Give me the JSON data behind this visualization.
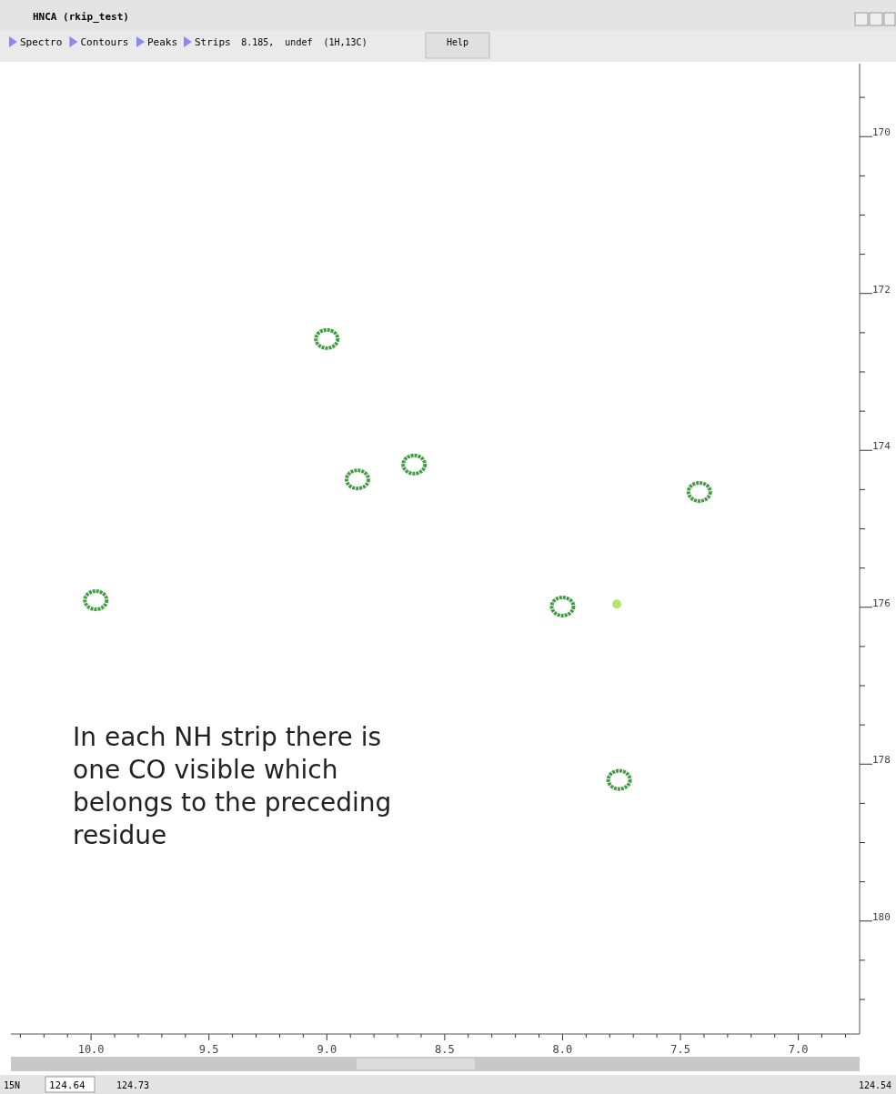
{
  "chart_data": {
    "type": "scatter",
    "title": "HNCA (rkip_test)",
    "annotations": [
      "In each NH strip there is one CO visible which belongs to the preceding residue",
      "Spectro",
      "Contours",
      "Peaks",
      "Strips",
      "8.185,  undef  (1H,13C)",
      "Help",
      "15N",
      "124.64",
      "124.73",
      "124.54"
    ],
    "series": [
      {
        "color": "#3f9e3f",
        "x": [
          9.0,
          8.87,
          8.63,
          7.42,
          9.98,
          8.0,
          7.76
        ],
        "values": [
          172.58,
          174.37,
          174.18,
          174.53,
          175.91,
          175.99,
          178.2
        ]
      },
      {
        "color": "#b4e46a",
        "x": [
          7.77
        ],
        "values": [
          175.96
        ]
      }
    ],
    "xlim": [
      10.34,
      6.74
    ],
    "ylim": [
      181.44,
      169.07
    ],
    "xticks": [
      {
        "value": 10.3,
        "label": null
      },
      {
        "value": 10.2,
        "label": null
      },
      {
        "value": 10.1,
        "label": null
      },
      {
        "value": 10,
        "label": "10.0"
      },
      {
        "value": 9.9,
        "label": null
      },
      {
        "value": 9.8,
        "label": null
      },
      {
        "value": 9.7,
        "label": null
      },
      {
        "value": 9.6,
        "label": null
      },
      {
        "value": 9.5,
        "label": "9.5"
      },
      {
        "value": 9.4,
        "label": null
      },
      {
        "value": 9.3,
        "label": null
      },
      {
        "value": 9.2,
        "label": null
      },
      {
        "value": 9.1,
        "label": null
      },
      {
        "value": 9,
        "label": "9.0"
      },
      {
        "value": 8.9,
        "label": null
      },
      {
        "value": 8.8,
        "label": null
      },
      {
        "value": 8.7,
        "label": null
      },
      {
        "value": 8.6,
        "label": null
      },
      {
        "value": 8.5,
        "label": "8.5"
      },
      {
        "value": 8.4,
        "label": null
      },
      {
        "value": 8.3,
        "label": null
      },
      {
        "value": 8.2,
        "label": null
      },
      {
        "value": 8.1,
        "label": null
      },
      {
        "value": 8,
        "label": "8.0"
      },
      {
        "value": 7.9,
        "label": null
      },
      {
        "value": 7.8,
        "label": null
      },
      {
        "value": 7.7,
        "label": null
      },
      {
        "value": 7.6,
        "label": null
      },
      {
        "value": 7.5,
        "label": "7.5"
      },
      {
        "value": 7.4,
        "label": null
      },
      {
        "value": 7.3,
        "label": null
      },
      {
        "value": 7.2,
        "label": null
      },
      {
        "value": 7.1,
        "label": null
      },
      {
        "value": 7,
        "label": "7.0"
      },
      {
        "value": 6.9,
        "label": null
      },
      {
        "value": 6.8,
        "label": null
      }
    ],
    "yticks": [
      {
        "value": 169.5,
        "label": null
      },
      170,
      {
        "value": 170.5,
        "label": null
      },
      {
        "value": 171,
        "label": null
      },
      {
        "value": 171.5,
        "label": null
      },
      172,
      {
        "value": 172.5,
        "label": null
      },
      {
        "value": 173,
        "label": null
      },
      {
        "value": 173.5,
        "label": null
      },
      174,
      {
        "value": 174.5,
        "label": null
      },
      {
        "value": 175,
        "label": null
      },
      {
        "value": 175.5,
        "label": null
      },
      176,
      {
        "value": 176.5,
        "label": null
      },
      {
        "value": 177,
        "label": null
      },
      {
        "value": 177.5,
        "label": null
      },
      178,
      {
        "value": 178.5,
        "label": null
      },
      {
        "value": 179,
        "label": null
      },
      {
        "value": 179.5,
        "label": null
      },
      180,
      {
        "value": 180.5,
        "label": null
      },
      {
        "value": 181,
        "label": null
      }
    ],
    "marker": "circle"
  }
}
